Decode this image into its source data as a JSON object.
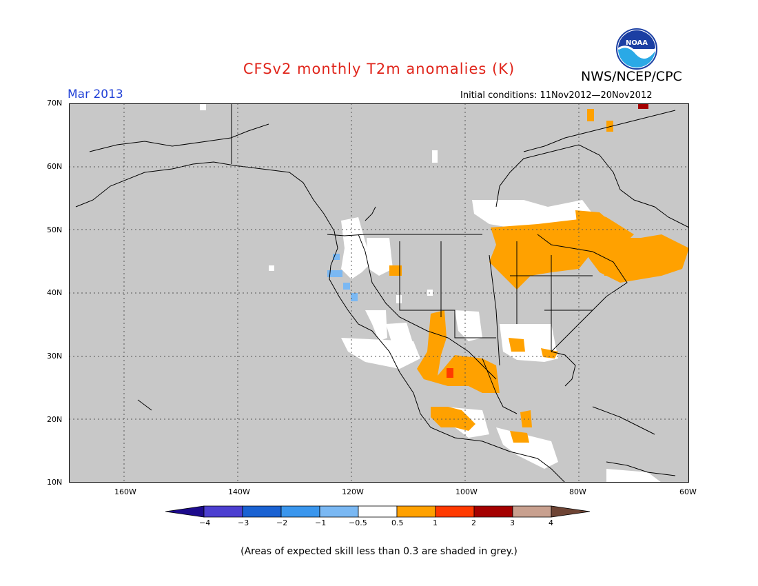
{
  "header": {
    "title": "CFSv2 monthly T2m anomalies (K)",
    "agency": "NWS/NCEP/CPC",
    "logo_text": "NOAA",
    "period": "Mar 2013",
    "initial_conditions": "Initial conditions: 11Nov2012—20Nov2012"
  },
  "colors": {
    "title": "#e0251b",
    "period": "#1f3fd6",
    "ocean_land_grey": "#c8c8c8",
    "border": "#000000"
  },
  "map": {
    "lat_labels": [
      "70N",
      "60N",
      "50N",
      "40N",
      "30N",
      "20N",
      "10N"
    ],
    "lon_labels": [
      "160W",
      "140W",
      "120W",
      "100W",
      "80W",
      "60W"
    ]
  },
  "colorbar": {
    "labels": [
      "−4",
      "−3",
      "−2",
      "−1",
      "−0.5",
      "0.5",
      "1",
      "2",
      "3",
      "4"
    ],
    "colors": [
      "#1c0a8c",
      "#4c3fd0",
      "#1a62d2",
      "#3a96ed",
      "#7ab8f3",
      "#ffffff",
      "#ffa100",
      "#ff3a00",
      "#a40000",
      "#c8a08f",
      "#6e4434"
    ]
  },
  "footer": {
    "note": "(Areas of expected skill less than 0.3 are shaded in grey.)"
  }
}
